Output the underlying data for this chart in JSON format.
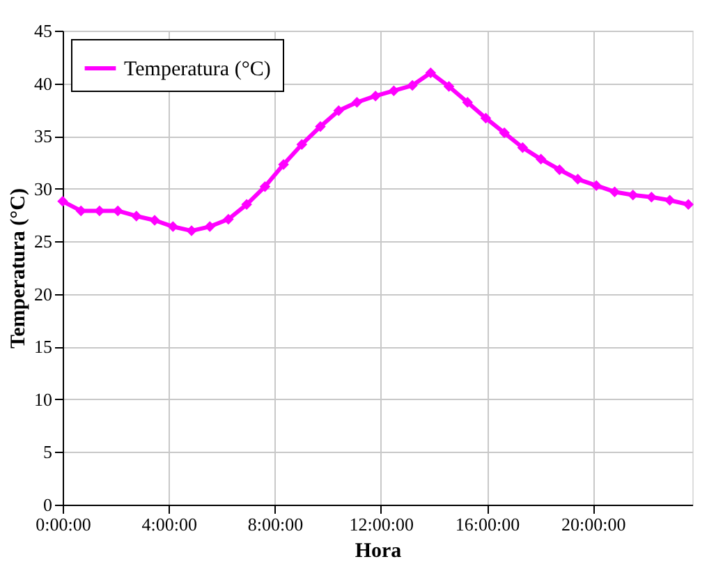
{
  "chart_data": {
    "type": "line",
    "xlabel": "Hora",
    "ylabel": "Temperatura (°C)",
    "x": [
      0,
      0.69,
      1.39,
      2.08,
      2.78,
      3.47,
      4.16,
      4.86,
      5.55,
      6.25,
      6.94,
      7.63,
      8.33,
      9.02,
      9.72,
      10.41,
      11.1,
      11.8,
      12.49,
      13.19,
      13.88,
      14.57,
      15.27,
      15.96,
      16.66,
      17.35,
      18.04,
      18.74,
      19.43,
      20.13,
      20.82,
      21.51,
      22.21,
      22.9,
      23.6
    ],
    "series": [
      {
        "name": "Temperatura (°C)",
        "color": "#ff00ff",
        "values": [
          28.8,
          27.9,
          27.9,
          27.9,
          27.4,
          27.0,
          26.4,
          26.0,
          26.4,
          27.1,
          28.5,
          30.2,
          32.3,
          34.2,
          35.9,
          37.4,
          38.2,
          38.8,
          39.3,
          39.8,
          41.0,
          39.7,
          38.2,
          36.7,
          35.3,
          33.9,
          32.8,
          31.8,
          30.9,
          30.3,
          29.7,
          29.4,
          29.2,
          28.9,
          28.5
        ]
      }
    ],
    "xlim": [
      0,
      23.75
    ],
    "xticks": [
      {
        "value": 0,
        "label": "0:00:00"
      },
      {
        "value": 4,
        "label": "4:00:00"
      },
      {
        "value": 8,
        "label": "8:00:00"
      },
      {
        "value": 12,
        "label": "12:00:00"
      },
      {
        "value": 16,
        "label": "16:00:00"
      },
      {
        "value": 20,
        "label": "20:00:00"
      }
    ],
    "ylim": [
      0,
      45
    ],
    "yticks": [
      0,
      5,
      10,
      15,
      20,
      25,
      30,
      35,
      40,
      45
    ],
    "grid": true,
    "legend": "top left",
    "marker": "diamond",
    "line_style": "solid"
  }
}
